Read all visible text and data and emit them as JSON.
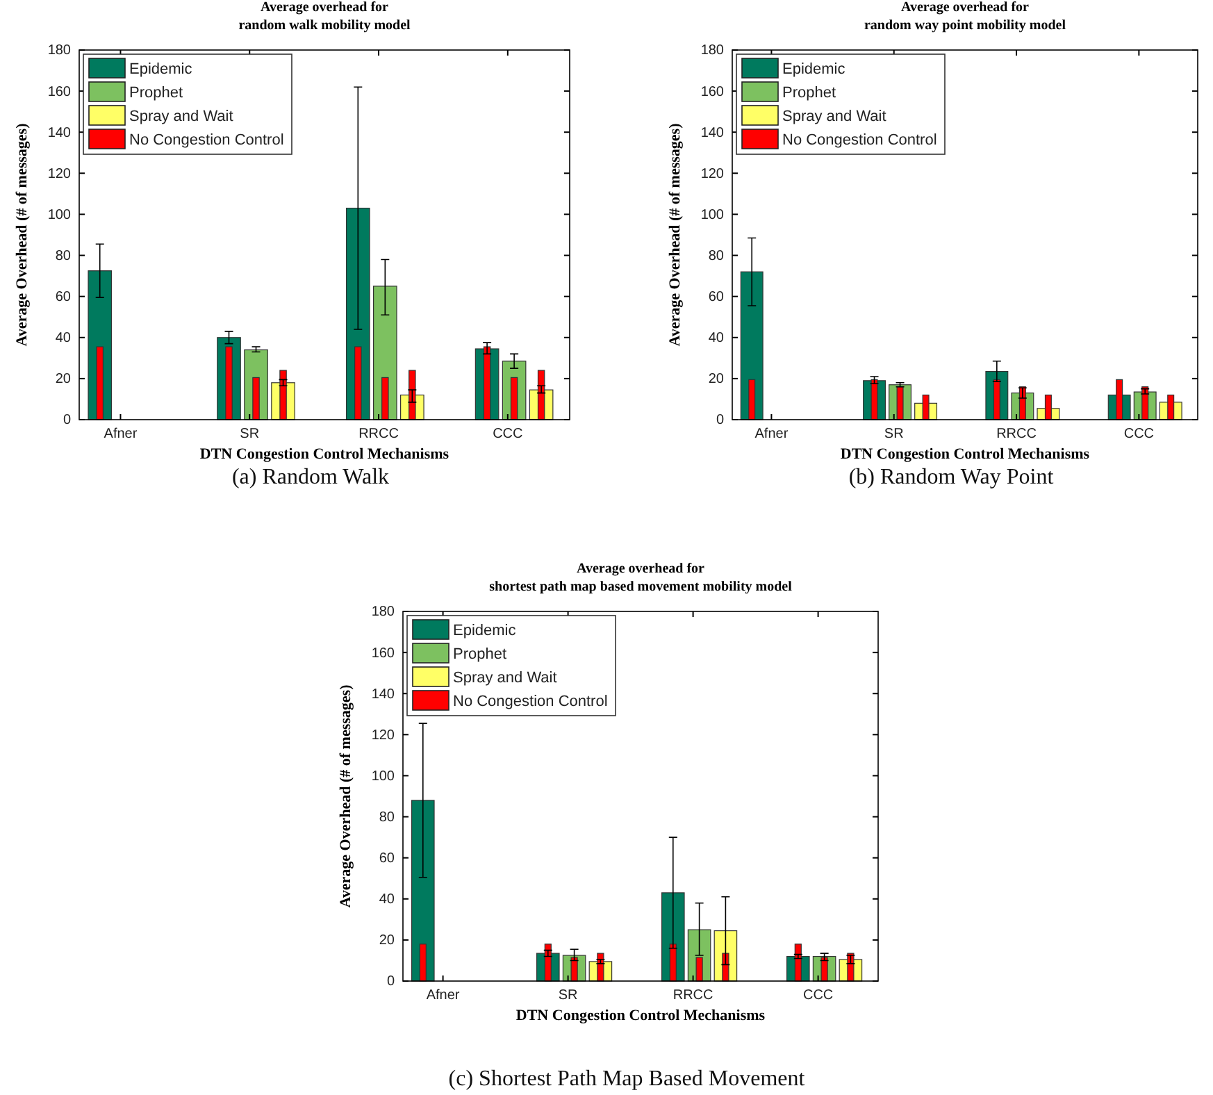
{
  "chart_data": [
    {
      "type": "bar",
      "title": "Average overhead for\nrandom walk mobility model",
      "xlabel": "DTN Congestion Control Mechanisms",
      "ylabel": "Average Overhead  (# of messages)",
      "annotations": [
        "(a) Random Walk"
      ],
      "categories": [
        "Afner",
        "SR",
        "RRCC",
        "CCC"
      ],
      "ylim": [
        0,
        180
      ],
      "yticks": [
        0,
        20,
        40,
        60,
        80,
        100,
        120,
        140,
        160,
        180
      ],
      "grid": false,
      "legend": "top left",
      "series": [
        {
          "name": "Epidemic",
          "color": "#007a5e",
          "values": [
            72.5,
            40,
            103,
            34.5
          ],
          "errors": [
            [
              59.5,
              85.5
            ],
            [
              37,
              43
            ],
            [
              44,
              162
            ],
            [
              32,
              37.5
            ]
          ]
        },
        {
          "name": "Prophet",
          "color": "#7dc160",
          "values": [
            null,
            34,
            65,
            28.5
          ],
          "errors": [
            null,
            [
              33,
              35.5
            ],
            [
              51,
              78
            ],
            [
              25,
              32
            ]
          ]
        },
        {
          "name": "Spray and Wait",
          "color": "#ffff66",
          "values": [
            null,
            18,
            12,
            14.5
          ],
          "errors": [
            null,
            [
              16.5,
              19.5
            ],
            [
              8.5,
              14.5
            ],
            [
              13,
              16.5
            ]
          ]
        },
        {
          "name": "No Congestion Control",
          "color": "#ff0000",
          "values": [
            35.5,
            35.5,
            35.5,
            35.5
          ]
        },
        {
          "color": "#ff0000",
          "values": [
            null,
            20.5,
            20.5,
            20.5
          ]
        },
        {
          "color": "#ff0000",
          "values": [
            null,
            24,
            24,
            24
          ]
        }
      ]
    },
    {
      "type": "bar",
      "title": "Average overhead for\nrandom way point mobility model",
      "xlabel": "DTN Congestion Control Mechanisms",
      "ylabel": "Average Overhead (# of messages)",
      "annotations": [
        "(b) Random Way Point"
      ],
      "categories": [
        "Afner",
        "SR",
        "RRCC",
        "CCC"
      ],
      "ylim": [
        0,
        180
      ],
      "yticks": [
        0,
        20,
        40,
        60,
        80,
        100,
        120,
        140,
        160,
        180
      ],
      "grid": false,
      "legend": "top left",
      "series": [
        {
          "name": "Epidemic",
          "color": "#007a5e",
          "values": [
            72,
            19,
            23.5,
            12
          ],
          "errors": [
            [
              55.5,
              88.5
            ],
            [
              17.5,
              21
            ],
            [
              18.5,
              28.5
            ],
            null
          ]
        },
        {
          "name": "Prophet",
          "color": "#7dc160",
          "values": [
            null,
            17,
            13,
            13.5
          ],
          "errors": [
            null,
            [
              16,
              18
            ],
            [
              10.5,
              15.5
            ],
            [
              12.5,
              15
            ]
          ]
        },
        {
          "name": "Spray and Wait",
          "color": "#ffff66",
          "values": [
            null,
            8,
            5.5,
            8.5
          ]
        },
        {
          "name": "No Congestion Control",
          "color": "#ff0000",
          "values": [
            19.5,
            19.5,
            19.5,
            19.5
          ]
        },
        {
          "color": "#ff0000",
          "values": [
            null,
            16,
            16,
            16
          ]
        },
        {
          "color": "#ff0000",
          "values": [
            null,
            12,
            12,
            12
          ]
        }
      ]
    },
    {
      "type": "bar",
      "title": "Average overhead for\nshortest path map based movement mobility model",
      "xlabel": "DTN Congestion Control Mechanisms",
      "ylabel": "Average Overhead (# of messages)",
      "annotations": [
        "(c) Shortest Path Map Based Movement"
      ],
      "categories": [
        "Afner",
        "SR",
        "RRCC",
        "CCC"
      ],
      "ylim": [
        0,
        180
      ],
      "yticks": [
        0,
        20,
        40,
        60,
        80,
        100,
        120,
        140,
        160,
        180
      ],
      "grid": false,
      "legend": "top left",
      "series": [
        {
          "name": "Epidemic",
          "color": "#007a5e",
          "values": [
            88,
            13.5,
            43,
            12
          ],
          "errors": [
            [
              50.5,
              125.5
            ],
            [
              12,
              15
            ],
            [
              16,
              70
            ],
            [
              11,
              13
            ]
          ]
        },
        {
          "name": "Prophet",
          "color": "#7dc160",
          "values": [
            null,
            12.5,
            25,
            12
          ],
          "errors": [
            null,
            [
              10,
              15.5
            ],
            [
              12.5,
              38
            ],
            [
              10,
              13.5
            ]
          ]
        },
        {
          "name": "Spray and Wait",
          "color": "#ffff66",
          "values": [
            null,
            9.5,
            24.5,
            10.5
          ],
          "errors": [
            null,
            [
              8.5,
              10.5
            ],
            [
              8,
              41
            ],
            [
              8.5,
              12.5
            ]
          ]
        },
        {
          "name": "No Congestion Control",
          "color": "#ff0000",
          "values": [
            18,
            18,
            18,
            18
          ]
        },
        {
          "color": "#ff0000",
          "values": [
            null,
            11.5,
            11.5,
            11.5
          ]
        },
        {
          "color": "#ff0000",
          "values": [
            null,
            13.5,
            13.5,
            13.5
          ]
        }
      ]
    }
  ]
}
